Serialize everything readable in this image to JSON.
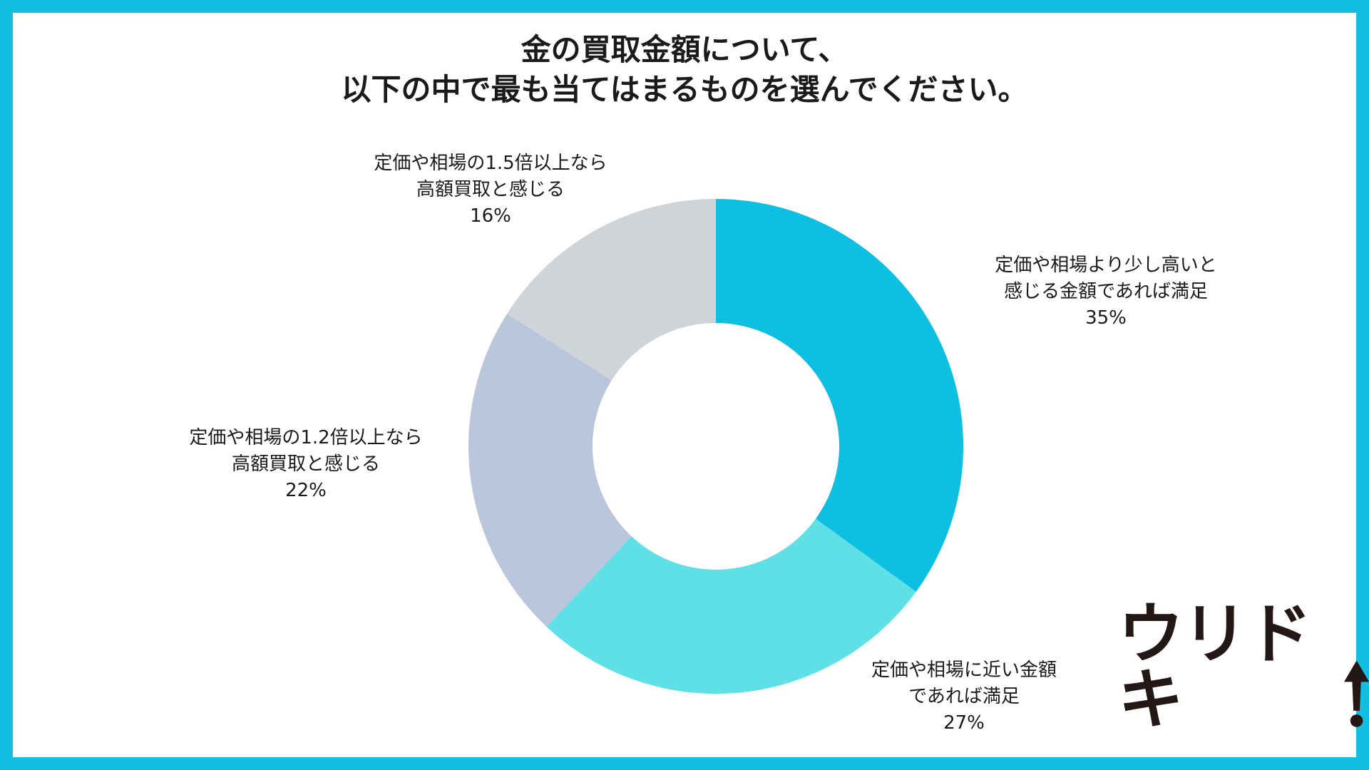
{
  "chart_data": {
    "type": "pie",
    "donut": true,
    "title": [
      "金の買取金額について、",
      "以下の中で最も当てはまるものを選んでください。"
    ],
    "slices": [
      {
        "label": [
          "定価や相場より少し高いと",
          "感じる金額であれば満足"
        ],
        "value": 35,
        "value_label": "35%",
        "color": "#0dbfe0"
      },
      {
        "label": [
          "定価や相場に近い金額",
          "であれば満足"
        ],
        "value": 27,
        "value_label": "27%",
        "color": "#5ee0e6"
      },
      {
        "label": [
          "定価や相場の1.2倍以上なら",
          "高額買取と感じる"
        ],
        "value": 22,
        "value_label": "22%",
        "color": "#bac6dc"
      },
      {
        "label": [
          "定価や相場の1.5倍以上なら",
          "高額買取と感じる"
        ],
        "value": 16,
        "value_label": "16%",
        "color": "#cfd4d8"
      }
    ],
    "start": "top",
    "direction": "clockwise"
  },
  "colors": {
    "frame": "#12bfe0",
    "background": "#ffffff"
  },
  "logo": {
    "text": "ウリドキ",
    "icon": "up-arrow-icon"
  }
}
